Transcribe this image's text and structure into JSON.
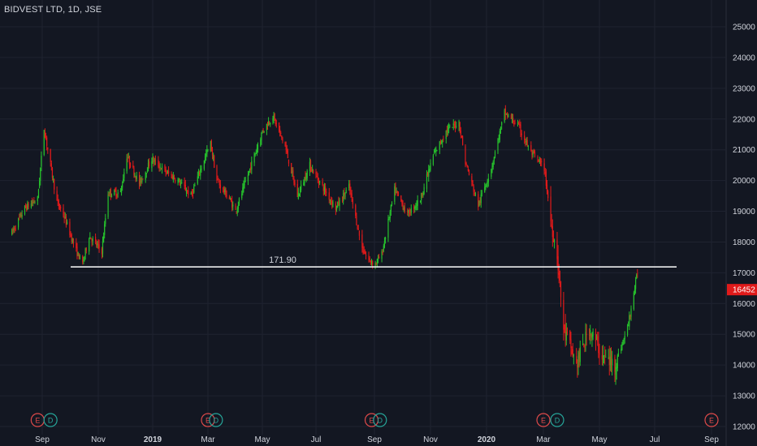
{
  "header": {
    "title": "BIDVEST LTD, 1D, JSE"
  },
  "colors": {
    "background": "#131722",
    "grid": "#1f2330",
    "up": "#26c02c",
    "down": "#e01a1a",
    "hline": "#ffffff",
    "price_tag_bg": "#e01a1a",
    "event_earnings": "#e04a4a",
    "event_dividend": "#26a69a"
  },
  "chart_data": {
    "type": "line",
    "title": "BIDVEST LTD, 1D, JSE",
    "y_axis": {
      "ticks": [
        "25000",
        "24000",
        "23000",
        "22000",
        "21000",
        "20000",
        "19000",
        "18000",
        "17000",
        "16000",
        "15000",
        "14000",
        "13000",
        "12000"
      ],
      "range": [
        11950,
        25350
      ]
    },
    "x_axis": {
      "ticks": [
        "Sep",
        "Nov",
        "2019",
        "Mar",
        "May",
        "Jul",
        "Sep",
        "Nov",
        "2020",
        "Mar",
        "May",
        "Jul",
        "Sep"
      ],
      "bold_ticks": [
        "2019",
        "2020"
      ]
    },
    "last_price": "16452",
    "horizontal_line": {
      "value": 17190,
      "label": "171.90"
    },
    "series": [
      {
        "points": [
          [
            "2018-07-30",
            18300
          ],
          [
            "2018-08-13",
            19100
          ],
          [
            "2018-08-27",
            19400
          ],
          [
            "2018-09-03",
            21700
          ],
          [
            "2018-09-10",
            20500
          ],
          [
            "2018-09-17",
            19300
          ],
          [
            "2018-09-24",
            18900
          ],
          [
            "2018-10-08",
            17700
          ],
          [
            "2018-10-15",
            17300
          ],
          [
            "2018-10-22",
            18200
          ],
          [
            "2018-11-05",
            17700
          ],
          [
            "2018-11-12",
            19600
          ],
          [
            "2018-11-26",
            19600
          ],
          [
            "2018-12-03",
            20800
          ],
          [
            "2018-12-17",
            19900
          ],
          [
            "2018-12-31",
            20700
          ],
          [
            "2019-01-14",
            20300
          ],
          [
            "2019-01-28",
            20000
          ],
          [
            "2019-02-11",
            19500
          ],
          [
            "2019-02-25",
            20700
          ],
          [
            "2019-03-04",
            21200
          ],
          [
            "2019-03-11",
            20000
          ],
          [
            "2019-03-25",
            19400
          ],
          [
            "2019-04-01",
            19000
          ],
          [
            "2019-04-15",
            20200
          ],
          [
            "2019-05-01",
            21600
          ],
          [
            "2019-05-13",
            22100
          ],
          [
            "2019-05-27",
            21100
          ],
          [
            "2019-06-10",
            19500
          ],
          [
            "2019-06-24",
            20500
          ],
          [
            "2019-07-08",
            19800
          ],
          [
            "2019-07-22",
            19100
          ],
          [
            "2019-08-05",
            19800
          ],
          [
            "2019-08-19",
            17800
          ],
          [
            "2019-08-26",
            17400
          ],
          [
            "2019-09-02",
            17300
          ],
          [
            "2019-09-09",
            17600
          ],
          [
            "2019-09-23",
            19700
          ],
          [
            "2019-10-07",
            18900
          ],
          [
            "2019-10-21",
            19400
          ],
          [
            "2019-11-04",
            20800
          ],
          [
            "2019-11-18",
            21600
          ],
          [
            "2019-12-02",
            21900
          ],
          [
            "2019-12-09",
            20600
          ],
          [
            "2019-12-23",
            19200
          ],
          [
            "2020-01-06",
            20400
          ],
          [
            "2020-01-20",
            22200
          ],
          [
            "2020-02-03",
            21800
          ],
          [
            "2020-02-17",
            20900
          ],
          [
            "2020-03-02",
            20400
          ],
          [
            "2020-03-09",
            18700
          ],
          [
            "2020-03-16",
            17600
          ],
          [
            "2020-03-23",
            15200
          ],
          [
            "2020-04-06",
            14000
          ],
          [
            "2020-04-20",
            15200
          ],
          [
            "2020-05-04",
            14300
          ],
          [
            "2020-05-18",
            14000
          ],
          [
            "2020-06-01",
            15200
          ],
          [
            "2020-06-12",
            17000
          ]
        ]
      }
    ],
    "events": [
      {
        "type": "E",
        "date": "2018-08-27"
      },
      {
        "type": "D",
        "date": "2018-09-10"
      },
      {
        "type": "E",
        "date": "2019-03-01"
      },
      {
        "type": "D",
        "date": "2019-03-10"
      },
      {
        "type": "E",
        "date": "2019-08-29"
      },
      {
        "type": "D",
        "date": "2019-09-07"
      },
      {
        "type": "E",
        "date": "2020-03-01"
      },
      {
        "type": "D",
        "date": "2020-03-16"
      },
      {
        "type": "E",
        "date": "2020-09-01"
      }
    ]
  }
}
